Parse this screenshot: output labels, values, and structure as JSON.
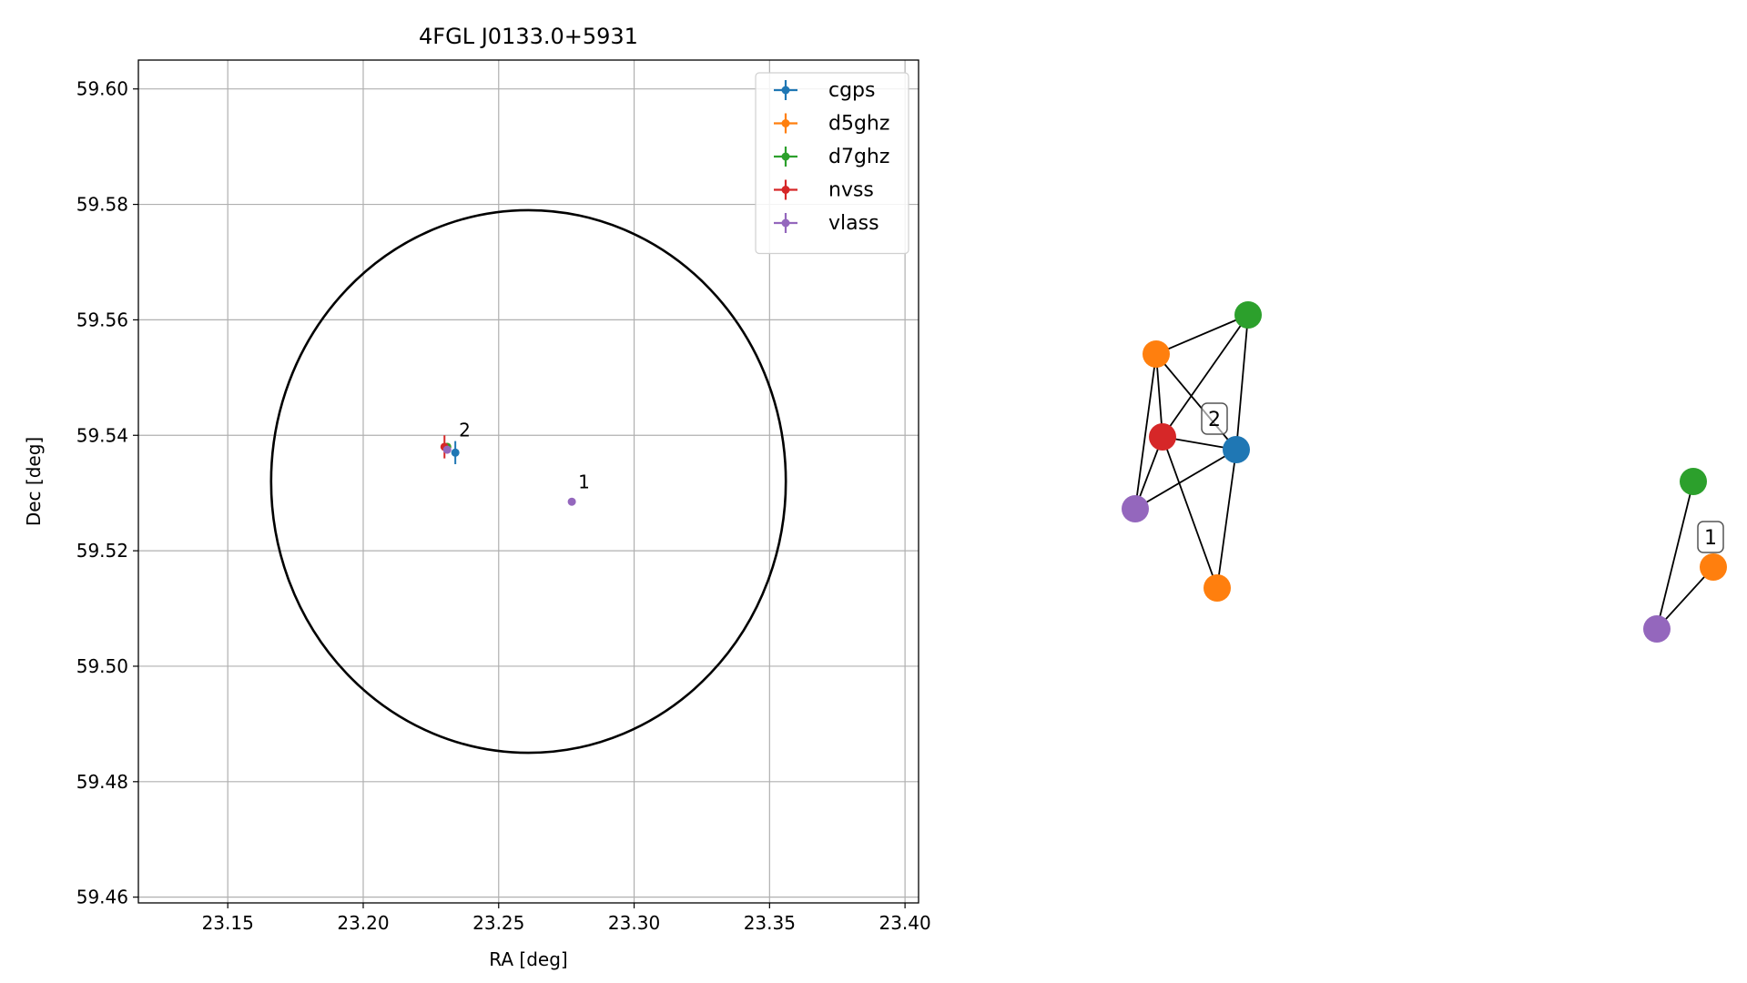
{
  "chart_data": [
    {
      "type": "scatter",
      "title": "4FGL J0133.0+5931",
      "xlabel": "RA [deg]",
      "ylabel": "Dec [deg]",
      "xlim": [
        23.117,
        23.405
      ],
      "ylim": [
        59.459,
        59.605
      ],
      "xticks": [
        "23.15",
        "23.20",
        "23.25",
        "23.30",
        "23.35",
        "23.40"
      ],
      "xtick_values": [
        23.15,
        23.2,
        23.25,
        23.3,
        23.35,
        23.4
      ],
      "yticks": [
        "59.46",
        "59.48",
        "59.50",
        "59.52",
        "59.54",
        "59.56",
        "59.58",
        "59.60"
      ],
      "ytick_values": [
        59.46,
        59.48,
        59.5,
        59.52,
        59.54,
        59.56,
        59.58,
        59.6
      ],
      "grid": true,
      "legend_position": "upper right",
      "error_circle": {
        "center_ra": 23.261,
        "center_dec": 59.532,
        "radius_ra": 0.095,
        "radius_dec": 0.047
      },
      "series": [
        {
          "name": "cgps",
          "color": "#1f77b4",
          "points": [
            {
              "ra": 23.234,
              "dec": 59.537,
              "err_ra": 0.001,
              "err_dec": 0.002
            }
          ]
        },
        {
          "name": "d5ghz",
          "color": "#ff7f0e",
          "points": [
            {
              "ra": 23.231,
              "dec": 59.538,
              "err_ra": 0.0,
              "err_dec": 0.0
            }
          ]
        },
        {
          "name": "d7ghz",
          "color": "#2ca02c",
          "points": [
            {
              "ra": 23.231,
              "dec": 59.538,
              "err_ra": 0.0,
              "err_dec": 0.0
            }
          ]
        },
        {
          "name": "nvss",
          "color": "#d62728",
          "points": [
            {
              "ra": 23.23,
              "dec": 59.538,
              "err_ra": 0.001,
              "err_dec": 0.002
            }
          ]
        },
        {
          "name": "vlass",
          "color": "#9467bd",
          "points": [
            {
              "ra": 23.231,
              "dec": 59.5375,
              "err_ra": 0.0,
              "err_dec": 0.0
            },
            {
              "ra": 23.277,
              "dec": 59.5285,
              "err_ra": 0.0,
              "err_dec": 0.0
            }
          ]
        }
      ],
      "annotations": [
        {
          "text": "2",
          "ra": 23.234,
          "dec": 59.5395
        },
        {
          "text": "1",
          "ra": 23.278,
          "dec": 59.5305
        }
      ]
    },
    {
      "type": "network",
      "groups": [
        {
          "label": "2",
          "nodes": [
            {
              "id": "cgps",
              "color": "#1f77b4"
            },
            {
              "id": "d5a",
              "color": "#ff7f0e"
            },
            {
              "id": "d5b",
              "color": "#ff7f0e"
            },
            {
              "id": "d7",
              "color": "#2ca02c"
            },
            {
              "id": "nvss",
              "color": "#d62728"
            },
            {
              "id": "vlass",
              "color": "#9467bd"
            }
          ],
          "edges": [
            [
              "d5a",
              "d7"
            ],
            [
              "d5a",
              "nvss"
            ],
            [
              "d5a",
              "cgps"
            ],
            [
              "d5a",
              "vlass"
            ],
            [
              "d7",
              "nvss"
            ],
            [
              "d7",
              "cgps"
            ],
            [
              "nvss",
              "cgps"
            ],
            [
              "nvss",
              "vlass"
            ],
            [
              "nvss",
              "d5b"
            ],
            [
              "cgps",
              "vlass"
            ],
            [
              "cgps",
              "d5b"
            ]
          ]
        },
        {
          "label": "1",
          "nodes": [
            {
              "id": "d7",
              "color": "#2ca02c"
            },
            {
              "id": "d5",
              "color": "#ff7f0e"
            },
            {
              "id": "vlass",
              "color": "#9467bd"
            }
          ],
          "edges": [
            [
              "d7",
              "vlass"
            ],
            [
              "d5",
              "vlass"
            ]
          ]
        }
      ]
    }
  ]
}
